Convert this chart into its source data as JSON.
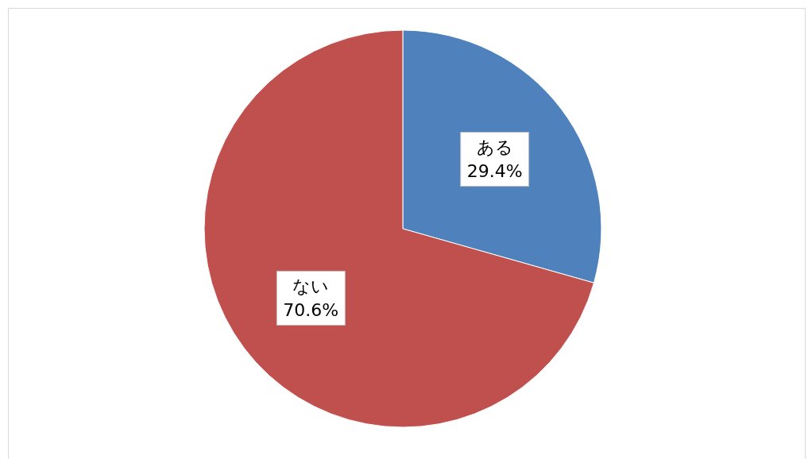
{
  "chart_data": {
    "type": "pie",
    "categories": [
      "ある",
      "ない"
    ],
    "values": [
      29.4,
      70.6
    ],
    "colors": [
      "#4f81bd",
      "#c0504d"
    ],
    "value_labels": [
      "29.4%",
      "70.6%"
    ]
  }
}
